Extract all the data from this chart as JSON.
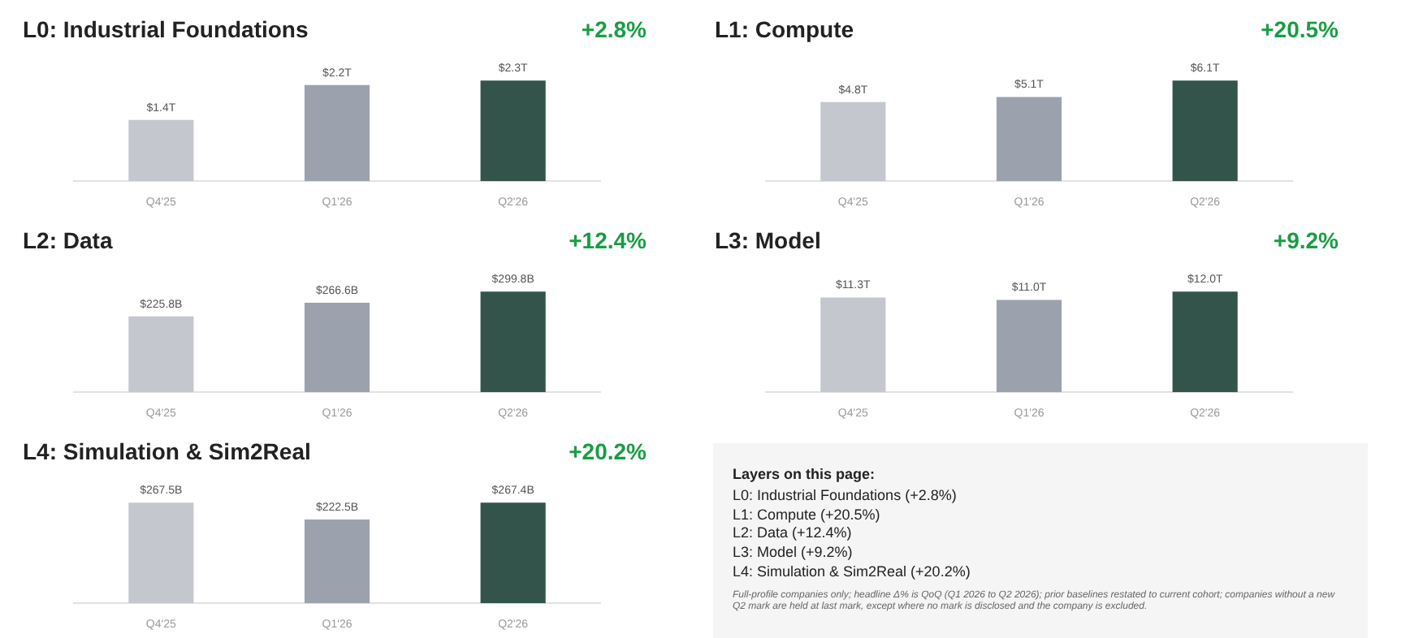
{
  "chart_data": [
    {
      "type": "bar",
      "title": "L0: Industrial Foundations",
      "annotations": [
        "+2.8%"
      ],
      "categories": [
        "Q4'25",
        "Q1'26",
        "Q2'26"
      ],
      "values": [
        1.4,
        2.2,
        2.3
      ],
      "value_labels": [
        "$1.4T",
        "$2.2T",
        "$2.3T"
      ],
      "colors": [
        "#c4c8ce",
        "#9ca2ad",
        "#33544a"
      ]
    },
    {
      "type": "bar",
      "title": "L1: Compute",
      "annotations": [
        "+20.5%"
      ],
      "categories": [
        "Q4'25",
        "Q1'26",
        "Q2'26"
      ],
      "values": [
        4.8,
        5.1,
        6.1
      ],
      "value_labels": [
        "$4.8T",
        "$5.1T",
        "$6.1T"
      ],
      "colors": [
        "#c4c8ce",
        "#9ca2ad",
        "#33544a"
      ]
    },
    {
      "type": "bar",
      "title": "L2: Data",
      "annotations": [
        "+12.4%"
      ],
      "categories": [
        "Q4'25",
        "Q1'26",
        "Q2'26"
      ],
      "values": [
        225.8,
        266.6,
        299.8
      ],
      "value_labels": [
        "$225.8B",
        "$266.6B",
        "$299.8B"
      ],
      "colors": [
        "#c4c8ce",
        "#9ca2ad",
        "#33544a"
      ]
    },
    {
      "type": "bar",
      "title": "L3: Model",
      "annotations": [
        "+9.2%"
      ],
      "categories": [
        "Q4'25",
        "Q1'26",
        "Q2'26"
      ],
      "values": [
        11.3,
        11.0,
        12.0
      ],
      "value_labels": [
        "$11.3T",
        "$11.0T",
        "$12.0T"
      ],
      "colors": [
        "#c4c8ce",
        "#9ca2ad",
        "#33544a"
      ]
    },
    {
      "type": "bar",
      "title": "L4: Simulation & Sim2Real",
      "annotations": [
        "+20.2%"
      ],
      "categories": [
        "Q4'25",
        "Q1'26",
        "Q2'26"
      ],
      "values": [
        267.5,
        222.5,
        267.4
      ],
      "value_labels": [
        "$267.5B",
        "$222.5B",
        "$267.4B"
      ],
      "colors": [
        "#c4c8ce",
        "#9ca2ad",
        "#33544a"
      ]
    },
    {
      "type": "other",
      "title": "Layers on this page:",
      "annotations": [
        "L0: Industrial Foundations (+2.8%)",
        "L1: Compute (+20.5%)",
        "L2: Data (+12.4%)",
        "L3: Model (+9.2%)",
        "L4: Simulation & Sim2Real (+20.2%)",
        "Full-profile companies only; headline Δ% is QoQ (Q1 2026 to Q2 2026); prior baselines restated to current cohort; companies without a new Q2 mark are held at last mark, except where no mark is disclosed and the company is excluded."
      ]
    }
  ]
}
